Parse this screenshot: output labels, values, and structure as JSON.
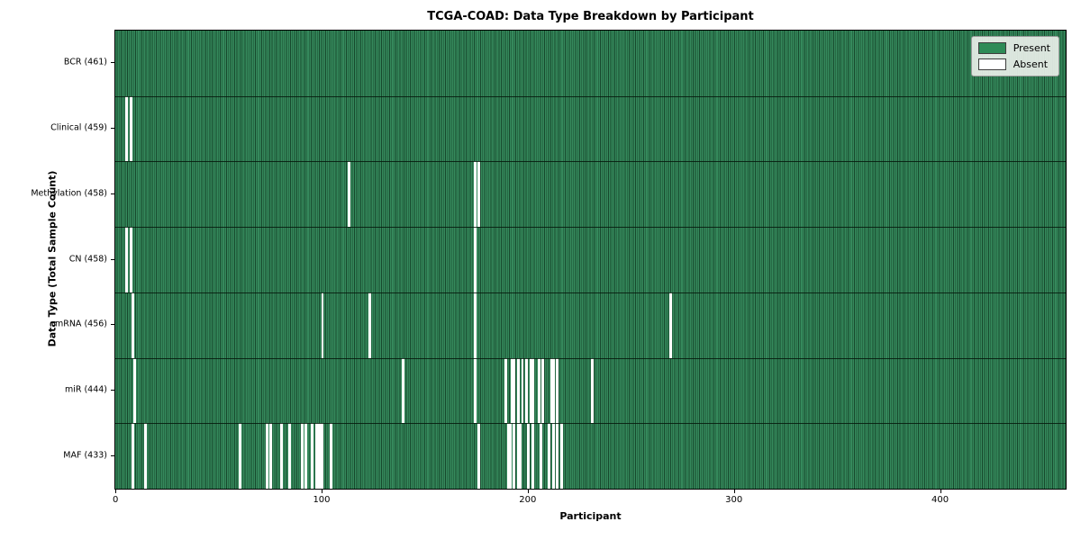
{
  "title": "TCGA-COAD: Data Type Breakdown by Participant",
  "legend": {
    "present_label": "Present",
    "absent_label": "Absent"
  },
  "colors": {
    "present": "#2e8b57",
    "present_edge": "#17492d",
    "absent": "#ffffff"
  },
  "chart_data": {
    "type": "heatmap",
    "title": "TCGA-COAD: Data Type Breakdown by Participant",
    "xlabel": "Participant",
    "ylabel": "Data Type (Total Sample Count)",
    "xlim": [
      -0.5,
      460.5
    ],
    "xticks": [
      0,
      100,
      200,
      300,
      400
    ],
    "n_participants": 461,
    "legend_position": "upper right",
    "grid": false,
    "rows": [
      {
        "label": "BCR (461)",
        "name": "BCR",
        "count": 461,
        "absent": []
      },
      {
        "label": "Clinical (459)",
        "name": "Clinical",
        "count": 459,
        "absent": [
          5,
          7
        ]
      },
      {
        "label": "Methylation (458)",
        "name": "Methylation",
        "count": 458,
        "absent": [
          113,
          174,
          176
        ]
      },
      {
        "label": "CN (458)",
        "name": "CN",
        "count": 458,
        "absent": [
          5,
          7,
          174
        ]
      },
      {
        "label": "mRNA (456)",
        "name": "mRNA",
        "count": 456,
        "absent": [
          8,
          100,
          123,
          174,
          269
        ]
      },
      {
        "label": "miR (444)",
        "name": "miR",
        "count": 444,
        "absent": [
          9,
          139,
          174,
          189,
          192,
          193,
          195,
          197,
          199,
          201,
          202,
          205,
          207,
          211,
          212,
          214,
          231
        ]
      },
      {
        "label": "MAF (433)",
        "name": "MAF",
        "count": 433,
        "absent": [
          8,
          14,
          60,
          73,
          75,
          80,
          84,
          90,
          92,
          95,
          97,
          98,
          99,
          100,
          104,
          176,
          190,
          191,
          193,
          195,
          196,
          200,
          202,
          206,
          210,
          212,
          214,
          216
        ]
      }
    ]
  }
}
